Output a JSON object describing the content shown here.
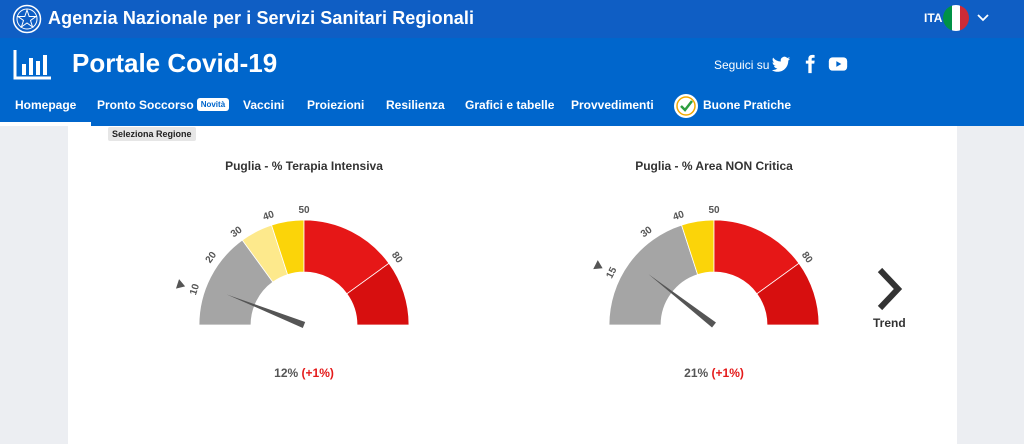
{
  "top_bar": {
    "agency_title": "Agenzia Nazionale per i Servizi Sanitari Regionali",
    "language": "ITA",
    "flag_colors": [
      "#009246",
      "#ffffff",
      "#ce2b37"
    ],
    "color": "#0f5ec4"
  },
  "header": {
    "portal_title": "Portale Covid-19",
    "follow_label": "Seguici su",
    "social_icons": [
      "twitter-icon",
      "facebook-icon",
      "youtube-icon"
    ],
    "color": "#0066cc"
  },
  "nav": {
    "items": [
      {
        "label": "Homepage",
        "active": true
      },
      {
        "label": "Pronto Soccorso",
        "badge": "Novità"
      },
      {
        "label": "Vaccini"
      },
      {
        "label": "Proiezioni"
      },
      {
        "label": "Resilienza"
      },
      {
        "label": "Grafici e tabelle"
      },
      {
        "label": "Provvedimenti"
      },
      {
        "label": "Buone Pratiche",
        "icon": "check-badge-icon"
      }
    ]
  },
  "region_select": {
    "label": "Seleziona Regione"
  },
  "gauges": [
    {
      "title": "Puglia - % Terapia Intensiva",
      "value": 12,
      "value_text": "12%",
      "delta_text": "(+1%)",
      "threshold": 10,
      "bands": [
        {
          "from": 0,
          "to": 30,
          "color": "#a5a5a5"
        },
        {
          "from": 30,
          "to": 40,
          "color": "#fde98c"
        },
        {
          "from": 40,
          "to": 50,
          "color": "#fbd409"
        },
        {
          "from": 50,
          "to": 80,
          "color": "#e61717"
        },
        {
          "from": 80,
          "to": 100,
          "color": "#d70f0f"
        }
      ],
      "tick_labels": [
        "10",
        "20",
        "30",
        "40",
        "50",
        "80"
      ]
    },
    {
      "title": "Puglia - % Area NON Critica",
      "value": 21,
      "value_text": "21%",
      "delta_text": "(+1%)",
      "threshold": 15,
      "bands": [
        {
          "from": 0,
          "to": 40,
          "color": "#a5a5a5"
        },
        {
          "from": 40,
          "to": 50,
          "color": "#fbd409"
        },
        {
          "from": 50,
          "to": 80,
          "color": "#e61717"
        },
        {
          "from": 80,
          "to": 100,
          "color": "#d70f0f"
        }
      ],
      "tick_labels": [
        "15",
        "30",
        "40",
        "50",
        "80"
      ]
    }
  ],
  "trend": {
    "label": "Trend"
  }
}
